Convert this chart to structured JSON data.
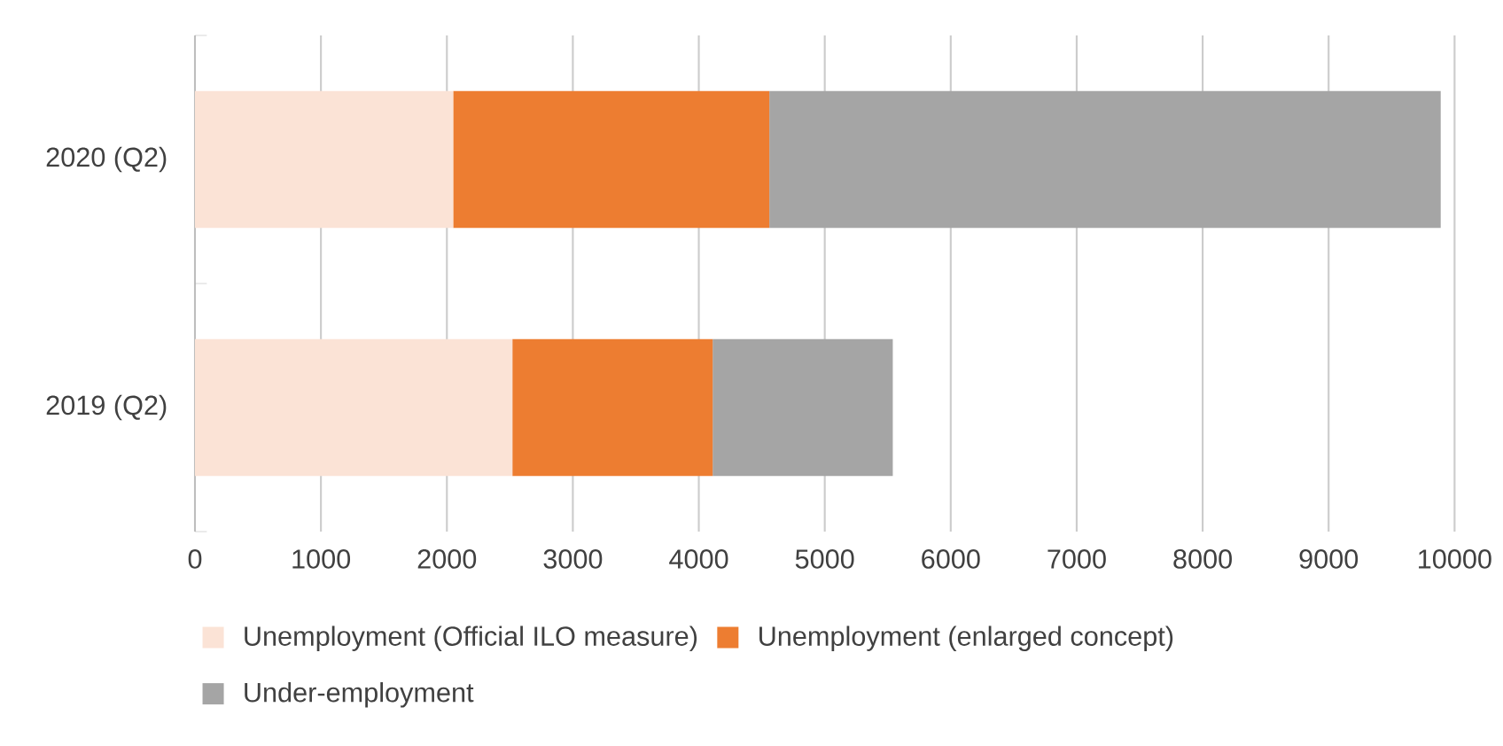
{
  "chart_data": {
    "type": "bar",
    "orientation": "horizontal",
    "stacked": true,
    "categories": [
      "2020 (Q2)",
      "2019 (Q2)"
    ],
    "series": [
      {
        "name": "Unemployment (Official ILO measure)",
        "color": "#fbe3d6",
        "values": [
          2050,
          2520
        ]
      },
      {
        "name": "Unemployment (enlarged concept)",
        "color": "#ed7d31",
        "values": [
          2510,
          1590
        ]
      },
      {
        "name": "Under-employment",
        "color": "#a5a5a5",
        "values": [
          5330,
          1430
        ]
      }
    ],
    "xlim": [
      0,
      10000
    ],
    "xticks": [
      0,
      1000,
      2000,
      3000,
      4000,
      5000,
      6000,
      7000,
      8000,
      9000,
      10000
    ],
    "grid": "x",
    "legend": "bottom"
  }
}
